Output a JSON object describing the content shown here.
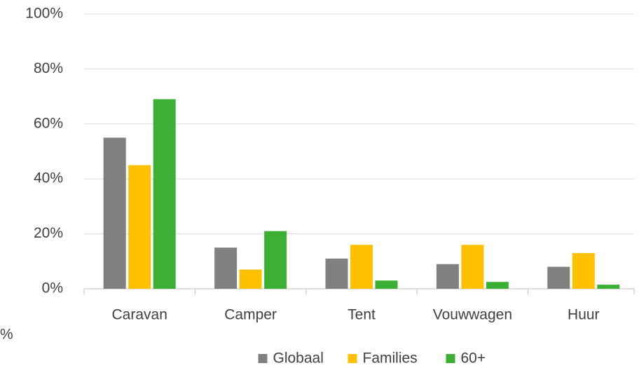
{
  "chart_data": {
    "type": "bar",
    "categories": [
      "Caravan",
      "Camper",
      "Tent",
      "Vouwwagen",
      "Huur"
    ],
    "series": [
      {
        "name": "Globaal",
        "color": "#808080",
        "values": [
          55,
          15,
          11,
          9,
          8
        ]
      },
      {
        "name": "Families",
        "color": "#ffc000",
        "values": [
          45,
          7,
          16,
          16,
          13
        ]
      },
      {
        "name": "60+",
        "color": "#3cb034",
        "values": [
          69,
          21,
          3,
          2.5,
          1.5
        ]
      }
    ],
    "ylim": [
      0,
      100
    ],
    "yticks": [
      {
        "value": 0,
        "label": "0%"
      },
      {
        "value": 20,
        "label": "20%"
      },
      {
        "value": 40,
        "label": "40%"
      },
      {
        "value": 60,
        "label": "60%"
      },
      {
        "value": 80,
        "label": "80%"
      },
      {
        "value": 100,
        "label": "100%"
      }
    ],
    "grid": true,
    "legend": "bottom",
    "annotation": "%"
  }
}
